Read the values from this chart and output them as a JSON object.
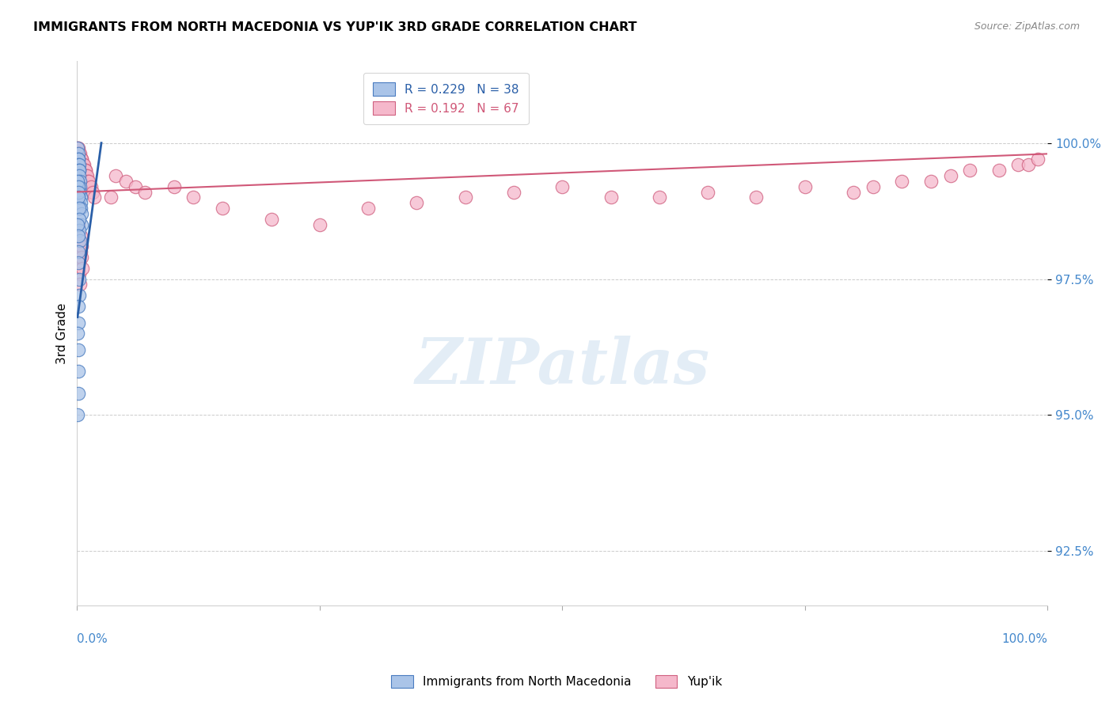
{
  "title": "IMMIGRANTS FROM NORTH MACEDONIA VS YUP'IK 3RD GRADE CORRELATION CHART",
  "source": "Source: ZipAtlas.com",
  "ylabel": "3rd Grade",
  "y_ticks": [
    92.5,
    95.0,
    97.5,
    100.0
  ],
  "y_tick_labels": [
    "92.5%",
    "95.0%",
    "97.5%",
    "100.0%"
  ],
  "x_range": [
    0.0,
    100.0
  ],
  "y_range": [
    91.5,
    101.5
  ],
  "blue_color": "#aac4e8",
  "pink_color": "#f5b8cb",
  "blue_edge_color": "#4a7cc0",
  "pink_edge_color": "#d06080",
  "blue_line_color": "#2a5fa8",
  "pink_line_color": "#d05878",
  "tick_color": "#4488cc",
  "watermark": "ZIPatlas",
  "legend_r_blue": "0.229",
  "legend_n_blue": "38",
  "legend_r_pink": "0.192",
  "legend_n_pink": "67",
  "blue_x": [
    0.08,
    0.1,
    0.12,
    0.15,
    0.15,
    0.18,
    0.2,
    0.22,
    0.25,
    0.28,
    0.3,
    0.32,
    0.35,
    0.38,
    0.4,
    0.42,
    0.45,
    0.08,
    0.1,
    0.12,
    0.15,
    0.18,
    0.2,
    0.25,
    0.3,
    0.08,
    0.1,
    0.12,
    0.15,
    0.18,
    0.2,
    0.1,
    0.12,
    0.08,
    0.1,
    0.1,
    0.12,
    0.08
  ],
  "blue_y": [
    99.9,
    99.8,
    99.7,
    99.7,
    99.6,
    99.6,
    99.5,
    99.5,
    99.4,
    99.3,
    99.2,
    99.1,
    99.0,
    98.9,
    98.8,
    98.7,
    98.5,
    99.3,
    99.2,
    99.1,
    99.0,
    98.8,
    98.6,
    98.4,
    98.2,
    98.5,
    98.3,
    98.0,
    97.8,
    97.5,
    97.2,
    97.0,
    96.7,
    96.5,
    96.2,
    95.8,
    95.4,
    95.0
  ],
  "pink_x": [
    0.05,
    0.1,
    0.15,
    0.2,
    0.25,
    0.3,
    0.35,
    0.4,
    0.45,
    0.5,
    0.55,
    0.6,
    0.65,
    0.7,
    0.75,
    0.8,
    0.85,
    0.9,
    0.95,
    1.0,
    1.1,
    1.2,
    1.4,
    1.6,
    1.8,
    3.5,
    4.0,
    5.0,
    6.0,
    7.0,
    10.0,
    12.0,
    15.0,
    20.0,
    25.0,
    30.0,
    35.0,
    40.0,
    45.0,
    50.0,
    55.0,
    60.0,
    65.0,
    70.0,
    75.0,
    80.0,
    82.0,
    85.0,
    88.0,
    90.0,
    92.0,
    95.0,
    97.0,
    98.0,
    99.0,
    0.08,
    0.1,
    0.12,
    0.15,
    0.2,
    0.25,
    0.3,
    0.35,
    0.4,
    0.45,
    0.5,
    0.55
  ],
  "pink_y": [
    99.9,
    99.9,
    99.8,
    99.8,
    99.8,
    99.8,
    99.7,
    99.7,
    99.7,
    99.7,
    99.6,
    99.6,
    99.6,
    99.6,
    99.5,
    99.5,
    99.5,
    99.5,
    99.4,
    99.4,
    99.3,
    99.3,
    99.2,
    99.1,
    99.0,
    99.0,
    99.4,
    99.3,
    99.2,
    99.1,
    99.2,
    99.0,
    98.8,
    98.6,
    98.5,
    98.8,
    98.9,
    99.0,
    99.1,
    99.2,
    99.0,
    99.0,
    99.1,
    99.0,
    99.2,
    99.1,
    99.2,
    99.3,
    99.3,
    99.4,
    99.5,
    99.5,
    99.6,
    99.6,
    99.7,
    99.0,
    98.8,
    98.5,
    98.2,
    97.9,
    97.6,
    97.4,
    98.0,
    98.3,
    98.1,
    97.9,
    97.7
  ],
  "blue_line_x": [
    0.05,
    2.5
  ],
  "blue_line_y_start": 96.8,
  "blue_line_y_end": 100.0,
  "pink_line_x": [
    0.0,
    100.0
  ],
  "pink_line_y_start": 99.1,
  "pink_line_y_end": 99.8
}
